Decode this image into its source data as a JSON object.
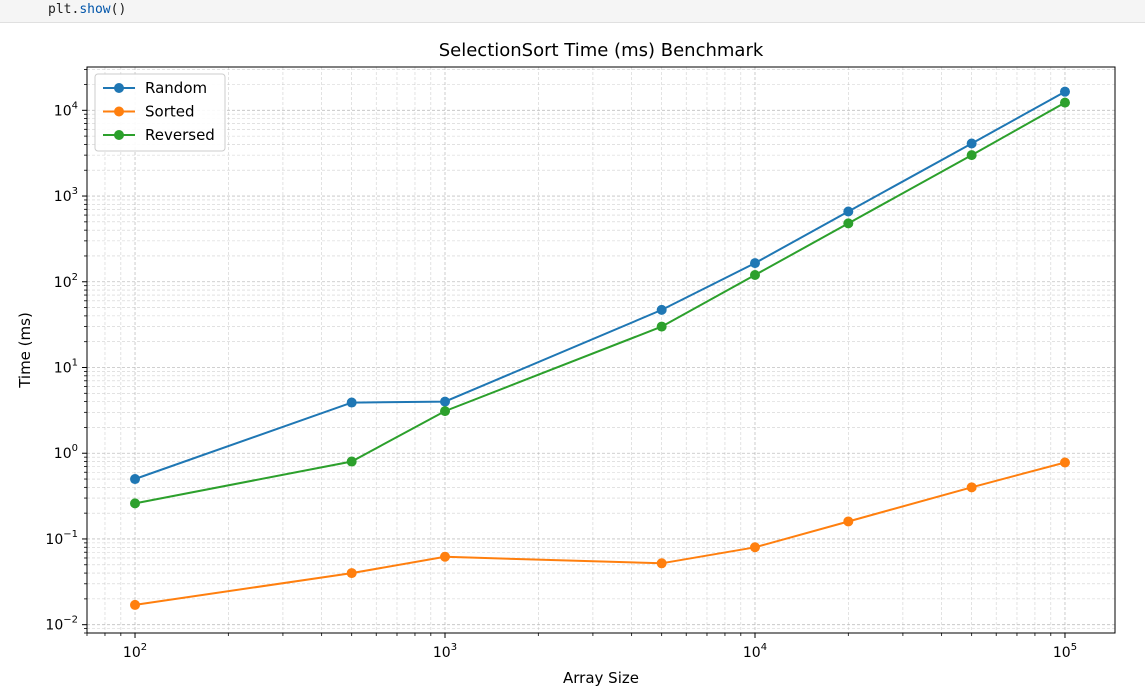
{
  "code_cell": {
    "object": "plt",
    "dot": ".",
    "method": "show",
    "call": "()"
  },
  "chart_data": {
    "type": "line",
    "title": "SelectionSort Time (ms) Benchmark",
    "xlabel": "Array Size",
    "ylabel": "Time (ms)",
    "xscale": "log",
    "yscale": "log",
    "xlim": [
      70,
      145000
    ],
    "ylim": [
      0.008,
      32000
    ],
    "grid": true,
    "legend_position": "top-left",
    "x": [
      100,
      500,
      1000,
      5000,
      10000,
      20000,
      50000,
      100000
    ],
    "x_ticks": [
      {
        "base": "10",
        "exp": "2",
        "value": 100
      },
      {
        "base": "10",
        "exp": "3",
        "value": 1000
      },
      {
        "base": "10",
        "exp": "4",
        "value": 10000
      },
      {
        "base": "10",
        "exp": "5",
        "value": 100000
      }
    ],
    "y_ticks": [
      {
        "base": "10",
        "exp": "−2",
        "value": 0.01
      },
      {
        "base": "10",
        "exp": "−1",
        "value": 0.1
      },
      {
        "base": "10",
        "exp": "0",
        "value": 1
      },
      {
        "base": "10",
        "exp": "1",
        "value": 10
      },
      {
        "base": "10",
        "exp": "2",
        "value": 100
      },
      {
        "base": "10",
        "exp": "3",
        "value": 1000
      },
      {
        "base": "10",
        "exp": "4",
        "value": 10000
      }
    ],
    "series": [
      {
        "name": "Random",
        "color": "#1f77b4",
        "values": [
          0.5,
          3.9,
          4.0,
          47,
          165,
          660,
          4100,
          16500
        ]
      },
      {
        "name": "Sorted",
        "color": "#ff7f0e",
        "values": [
          0.017,
          0.04,
          0.062,
          0.052,
          0.08,
          0.16,
          0.4,
          0.78
        ]
      },
      {
        "name": "Reversed",
        "color": "#2ca02c",
        "values": [
          0.26,
          0.8,
          3.1,
          30,
          120,
          480,
          3000,
          12300
        ]
      }
    ]
  }
}
